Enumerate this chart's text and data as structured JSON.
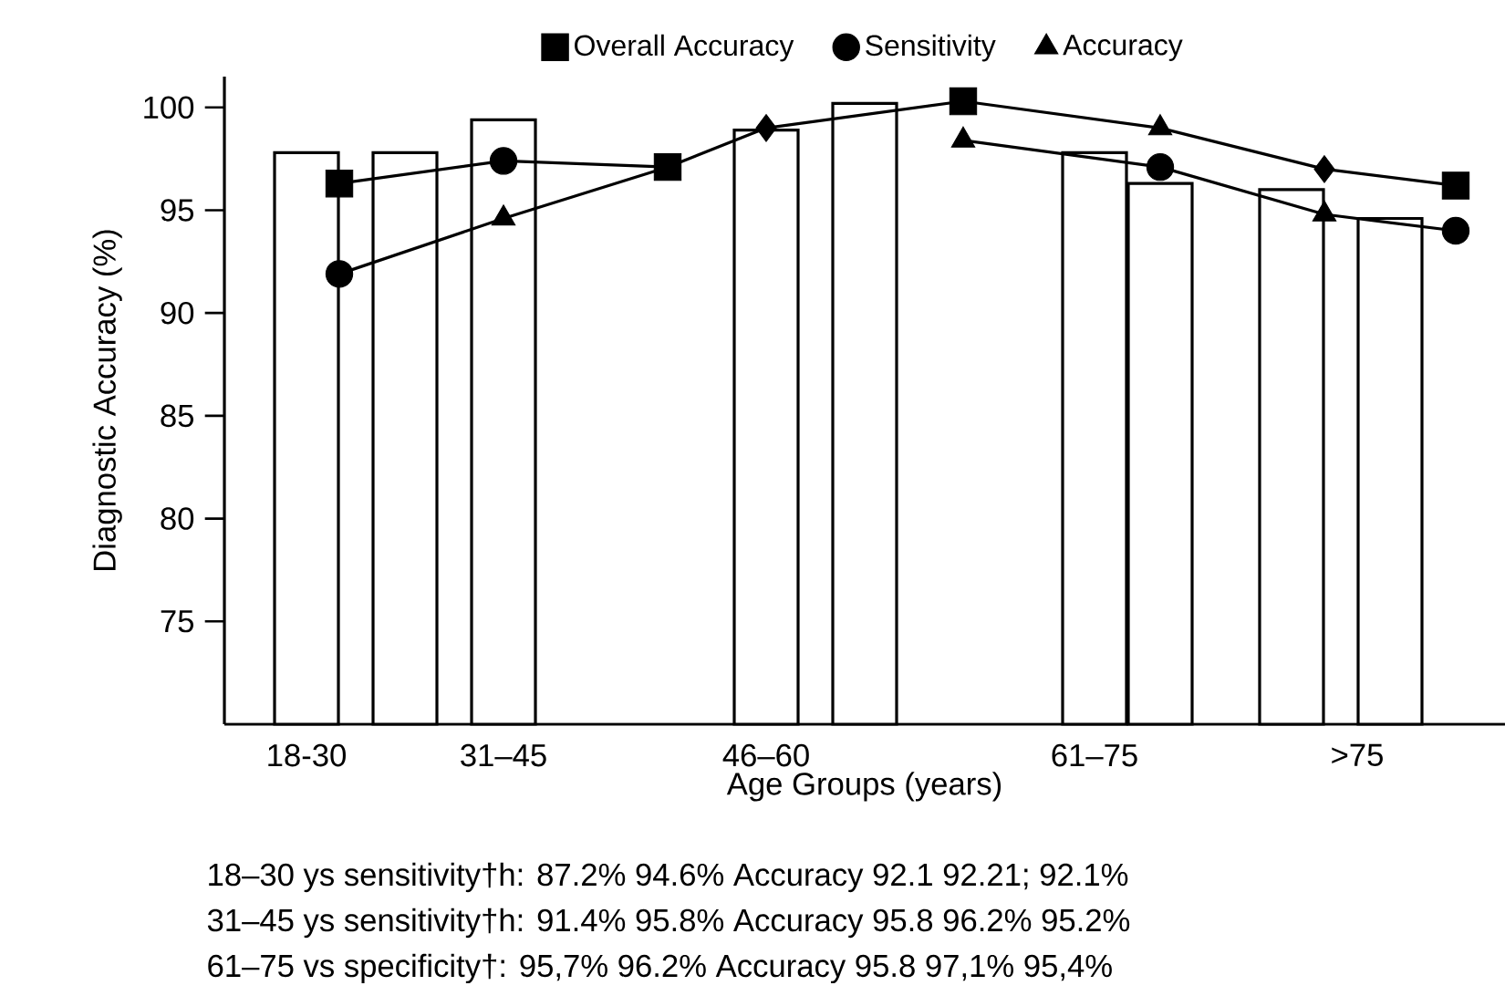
{
  "chart_data": {
    "type": "bar",
    "xlabel": "Age Groups (years)",
    "ylabel": "Diagnostic Accuracy (%)",
    "ylim": [
      70,
      101.5
    ],
    "yticks": [
      75,
      80,
      85,
      90,
      95,
      100
    ],
    "categories": [
      null,
      null,
      "18-30",
      null,
      null,
      null,
      null,
      null,
      "31–45",
      null,
      null,
      null,
      null,
      null,
      null,
      null,
      "46–60",
      null,
      null,
      null,
      null,
      null,
      null,
      null,
      null,
      null,
      "61–75",
      null,
      null,
      null,
      null,
      null,
      null,
      null,
      ">75",
      null,
      null,
      null,
      null
    ],
    "legend": "top",
    "series": [
      {
        "color": "#ffffff",
        "values": [
          null,
          null,
          97.8,
          null,
          null,
          97.8,
          null,
          null,
          99.4,
          null,
          null,
          null,
          null,
          null,
          null,
          null,
          98.9,
          null,
          null,
          100.2,
          null,
          null,
          null,
          null,
          null,
          null,
          97.8,
          null,
          96.3,
          null,
          null,
          null,
          96.0,
          null,
          null,
          94.6,
          null,
          null,
          null
        ]
      },
      {
        "type": "line",
        "color": "#000000",
        "marker": "none",
        "values": [
          null,
          null,
          null,
          96.3,
          null,
          null,
          null,
          null,
          97.4,
          null,
          null,
          null,
          null,
          97.1,
          null,
          null,
          null,
          null,
          null,
          null,
          null,
          null,
          null,
          null,
          null,
          null,
          null,
          null,
          null,
          null,
          null,
          null,
          null,
          null,
          null,
          null,
          null,
          null,
          null
        ]
      },
      {
        "type": "line",
        "color": "#000000",
        "marker": "none",
        "values": [
          null,
          null,
          null,
          91.9,
          null,
          null,
          null,
          null,
          94.6,
          null,
          null,
          null,
          null,
          97.1,
          null,
          null,
          99.0,
          null,
          null,
          null,
          null,
          null,
          100.3,
          null,
          null,
          null,
          null,
          null,
          99.0,
          null,
          null,
          null,
          null,
          97.0,
          null,
          null,
          null,
          96.2,
          null
        ]
      },
      {
        "type": "line",
        "color": "#000000",
        "marker": "none",
        "values": [
          null,
          null,
          null,
          null,
          null,
          null,
          null,
          null,
          null,
          null,
          null,
          null,
          null,
          null,
          null,
          null,
          null,
          null,
          null,
          null,
          null,
          null,
          98.4,
          null,
          null,
          null,
          null,
          null,
          97.1,
          null,
          null,
          null,
          null,
          94.8,
          null,
          null,
          null,
          94.0,
          null
        ]
      },
      {
        "type": "scatter",
        "name": "Overall Accuracy",
        "color": "#000000",
        "marker": "square",
        "values": [
          null,
          null,
          null,
          96.3,
          null,
          null,
          null,
          null,
          null,
          null,
          null,
          null,
          null,
          97.1,
          null,
          null,
          null,
          null,
          null,
          null,
          null,
          null,
          100.3,
          null,
          null,
          null,
          null,
          null,
          null,
          null,
          null,
          null,
          null,
          null,
          null,
          null,
          null,
          96.2,
          null
        ]
      },
      {
        "type": "scatter",
        "name": "Sensitivity",
        "color": "#000000",
        "marker": "circle",
        "values": [
          null,
          null,
          null,
          91.9,
          null,
          null,
          null,
          null,
          97.4,
          null,
          null,
          null,
          null,
          null,
          null,
          null,
          null,
          null,
          null,
          null,
          null,
          null,
          null,
          null,
          null,
          null,
          null,
          null,
          97.1,
          null,
          null,
          null,
          null,
          null,
          null,
          null,
          null,
          94.0,
          null
        ]
      },
      {
        "type": "scatter",
        "name": "Accuracy",
        "color": "#000000",
        "marker": "triangle",
        "values": [
          null,
          null,
          null,
          null,
          null,
          null,
          null,
          null,
          94.6,
          null,
          null,
          null,
          null,
          null,
          null,
          null,
          null,
          null,
          null,
          null,
          null,
          null,
          98.4,
          null,
          null,
          null,
          null,
          null,
          99.0,
          null,
          null,
          null,
          null,
          94.8,
          null,
          null,
          null,
          null,
          null
        ]
      },
      {
        "type": "scatter",
        "color": "#000000",
        "marker": "diamond",
        "values": [
          null,
          null,
          null,
          null,
          null,
          null,
          null,
          null,
          null,
          null,
          null,
          null,
          null,
          null,
          null,
          null,
          99.0,
          null,
          null,
          null,
          null,
          null,
          null,
          null,
          null,
          null,
          null,
          null,
          null,
          null,
          null,
          null,
          null,
          97.0,
          null,
          null,
          null,
          null,
          null
        ]
      }
    ],
    "annotations": [
      "18–30 ys sensitivity†h: 87.2%  94.6%  Accuracy 92.1 92.21;  92.1%",
      "31–45 ys sensitivity†h: 91.4%  95.8%  Accuracy 95.8 96.2%  95.2%",
      "61–75 vs specificity†: 95,7%  96.2%  Accuracy 95.8 97,1%  95,4%"
    ]
  }
}
